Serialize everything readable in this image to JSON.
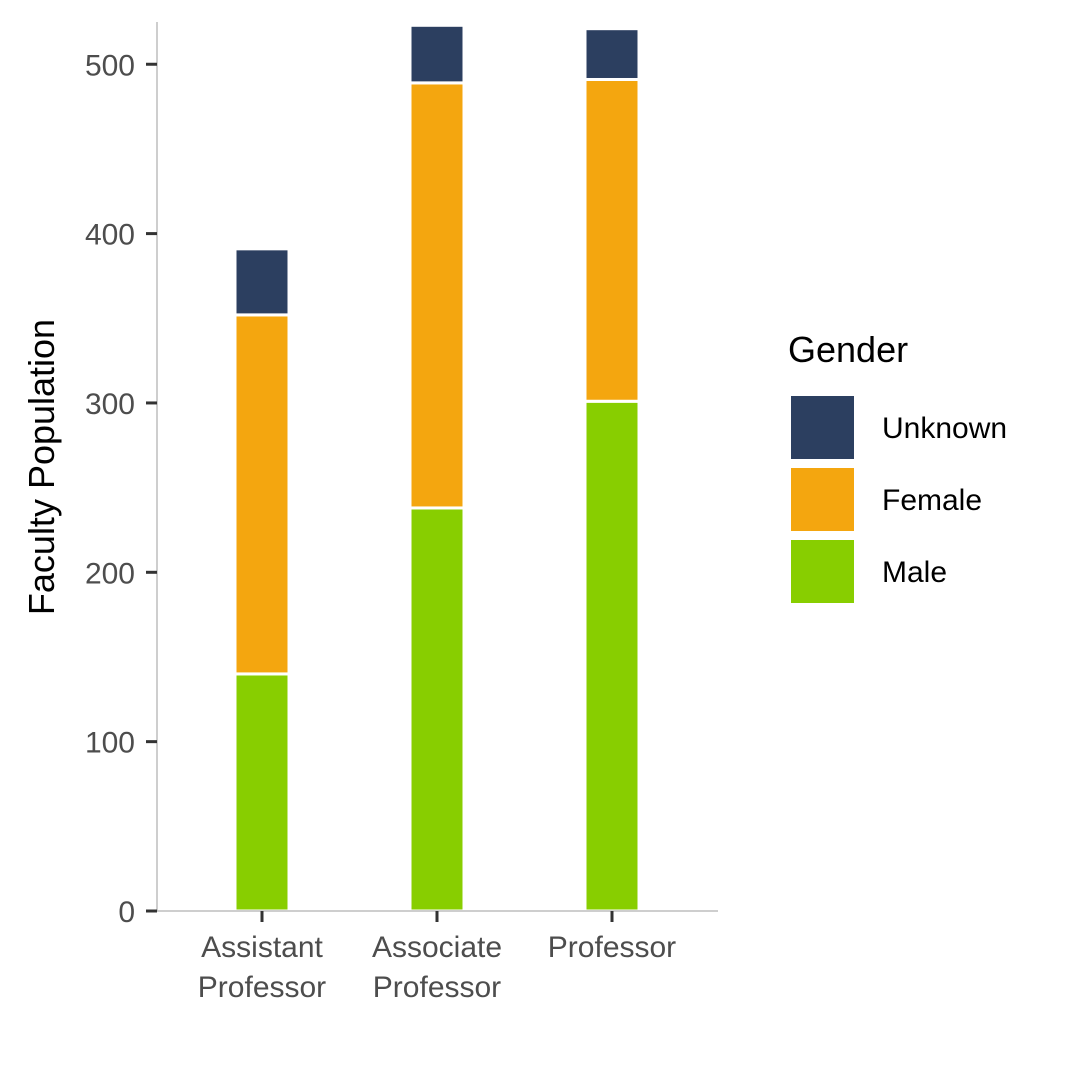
{
  "chart_data": {
    "type": "bar",
    "stacked": true,
    "categories": [
      [
        "Assistant",
        "Professor"
      ],
      [
        "Associate",
        "Professor"
      ],
      [
        "Professor"
      ]
    ],
    "series": [
      {
        "name": "Male",
        "color": "#88CE00",
        "values": [
          140,
          238,
          301
        ]
      },
      {
        "name": "Female",
        "color": "#F4A60F",
        "values": [
          212,
          251,
          190
        ]
      },
      {
        "name": "Unknown",
        "color": "#2C3F60",
        "values": [
          39,
          34,
          30
        ]
      }
    ],
    "title": "",
    "xlabel": "",
    "ylabel": "Faculty Population",
    "ylim": [
      0,
      525
    ],
    "yticks": [
      0,
      100,
      200,
      300,
      400,
      500
    ],
    "grid": false,
    "legend": {
      "title": "Gender",
      "position": "right",
      "order": [
        "Unknown",
        "Female",
        "Male"
      ]
    }
  }
}
